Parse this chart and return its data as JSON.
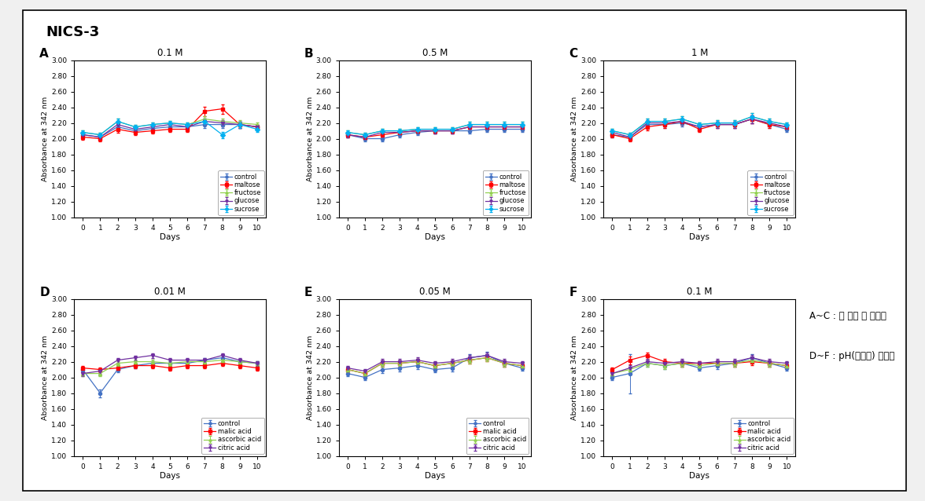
{
  "title": "NICS-3",
  "days": [
    0,
    1,
    2,
    3,
    4,
    5,
    6,
    7,
    8,
    9,
    10
  ],
  "ylim": [
    1.0,
    3.0
  ],
  "yticks": [
    1.0,
    1.2,
    1.4,
    1.6,
    1.8,
    2.0,
    2.2,
    2.4,
    2.6,
    2.8,
    3.0
  ],
  "ylabel": "Absorbance at 342 nm",
  "xlabel": "Days",
  "sugar_labels": [
    "control",
    "maltose",
    "fructose",
    "glucose",
    "sucrose"
  ],
  "sugar_colors": [
    "#4472C4",
    "#FF0000",
    "#92D050",
    "#7030A0",
    "#00B0F0"
  ],
  "sugar_markers": [
    "o",
    "s",
    "^",
    "v",
    "D"
  ],
  "acid_labels": [
    "control",
    "malic acid",
    "ascorbic acid",
    "citric acid"
  ],
  "acid_colors": [
    "#4472C4",
    "#FF0000",
    "#92D050",
    "#7030A0"
  ],
  "acid_markers": [
    "o",
    "s",
    "^",
    "v"
  ],
  "subplots": [
    {
      "label": "A",
      "title": "0.1 M",
      "type": "sugar",
      "data": {
        "control": [
          2.05,
          2.02,
          2.15,
          2.1,
          2.13,
          2.15,
          2.15,
          2.18,
          2.18,
          2.18,
          2.15
        ],
        "maltose": [
          2.02,
          2.0,
          2.12,
          2.08,
          2.1,
          2.12,
          2.12,
          2.35,
          2.38,
          2.18,
          2.15
        ],
        "fructose": [
          2.08,
          2.05,
          2.22,
          2.15,
          2.18,
          2.2,
          2.18,
          2.25,
          2.22,
          2.2,
          2.18
        ],
        "glucose": [
          2.05,
          2.02,
          2.18,
          2.12,
          2.15,
          2.18,
          2.15,
          2.22,
          2.2,
          2.18,
          2.15
        ],
        "sucrose": [
          2.08,
          2.05,
          2.22,
          2.15,
          2.18,
          2.2,
          2.18,
          2.22,
          2.05,
          2.18,
          2.12
        ]
      },
      "errors": {
        "control": [
          0.03,
          0.03,
          0.04,
          0.03,
          0.03,
          0.03,
          0.03,
          0.04,
          0.04,
          0.04,
          0.03
        ],
        "maltose": [
          0.03,
          0.03,
          0.04,
          0.03,
          0.03,
          0.03,
          0.03,
          0.06,
          0.06,
          0.04,
          0.03
        ],
        "fructose": [
          0.03,
          0.03,
          0.04,
          0.03,
          0.03,
          0.03,
          0.03,
          0.04,
          0.04,
          0.04,
          0.03
        ],
        "glucose": [
          0.03,
          0.03,
          0.04,
          0.03,
          0.03,
          0.03,
          0.03,
          0.04,
          0.04,
          0.04,
          0.03
        ],
        "sucrose": [
          0.03,
          0.03,
          0.04,
          0.03,
          0.03,
          0.03,
          0.03,
          0.04,
          0.04,
          0.04,
          0.03
        ]
      }
    },
    {
      "label": "B",
      "title": "0.5 M",
      "type": "sugar",
      "data": {
        "control": [
          2.05,
          2.0,
          2.0,
          2.05,
          2.08,
          2.1,
          2.1,
          2.1,
          2.12,
          2.12,
          2.12
        ],
        "maltose": [
          2.05,
          2.02,
          2.05,
          2.08,
          2.1,
          2.1,
          2.1,
          2.15,
          2.15,
          2.15,
          2.15
        ],
        "fructose": [
          2.08,
          2.05,
          2.1,
          2.1,
          2.12,
          2.12,
          2.12,
          2.18,
          2.18,
          2.18,
          2.18
        ],
        "glucose": [
          2.05,
          2.02,
          2.08,
          2.08,
          2.1,
          2.1,
          2.1,
          2.15,
          2.15,
          2.15,
          2.15
        ],
        "sucrose": [
          2.08,
          2.05,
          2.1,
          2.1,
          2.12,
          2.12,
          2.12,
          2.18,
          2.18,
          2.18,
          2.18
        ]
      },
      "errors": {
        "control": [
          0.03,
          0.03,
          0.03,
          0.03,
          0.03,
          0.03,
          0.03,
          0.03,
          0.03,
          0.03,
          0.03
        ],
        "maltose": [
          0.03,
          0.03,
          0.03,
          0.03,
          0.03,
          0.03,
          0.03,
          0.04,
          0.04,
          0.04,
          0.04
        ],
        "fructose": [
          0.03,
          0.03,
          0.03,
          0.03,
          0.03,
          0.03,
          0.03,
          0.04,
          0.04,
          0.04,
          0.04
        ],
        "glucose": [
          0.03,
          0.03,
          0.03,
          0.03,
          0.03,
          0.03,
          0.03,
          0.04,
          0.04,
          0.04,
          0.04
        ],
        "sucrose": [
          0.03,
          0.03,
          0.03,
          0.03,
          0.03,
          0.03,
          0.03,
          0.04,
          0.04,
          0.04,
          0.04
        ]
      }
    },
    {
      "label": "C",
      "title": "1 M",
      "type": "sugar",
      "data": {
        "control": [
          2.05,
          2.02,
          2.18,
          2.18,
          2.2,
          2.15,
          2.18,
          2.18,
          2.25,
          2.18,
          2.12
        ],
        "maltose": [
          2.05,
          2.0,
          2.15,
          2.18,
          2.22,
          2.12,
          2.18,
          2.18,
          2.25,
          2.18,
          2.15
        ],
        "fructose": [
          2.1,
          2.05,
          2.22,
          2.22,
          2.25,
          2.18,
          2.2,
          2.2,
          2.28,
          2.22,
          2.18
        ],
        "glucose": [
          2.08,
          2.02,
          2.2,
          2.2,
          2.22,
          2.15,
          2.18,
          2.18,
          2.25,
          2.2,
          2.15
        ],
        "sucrose": [
          2.1,
          2.05,
          2.22,
          2.22,
          2.25,
          2.18,
          2.2,
          2.2,
          2.28,
          2.22,
          2.18
        ]
      },
      "errors": {
        "control": [
          0.03,
          0.03,
          0.04,
          0.04,
          0.04,
          0.03,
          0.04,
          0.04,
          0.05,
          0.04,
          0.03
        ],
        "maltose": [
          0.03,
          0.03,
          0.04,
          0.04,
          0.04,
          0.03,
          0.04,
          0.04,
          0.05,
          0.04,
          0.03
        ],
        "fructose": [
          0.03,
          0.03,
          0.04,
          0.04,
          0.04,
          0.03,
          0.04,
          0.04,
          0.05,
          0.04,
          0.03
        ],
        "glucose": [
          0.03,
          0.03,
          0.04,
          0.04,
          0.04,
          0.03,
          0.04,
          0.04,
          0.05,
          0.04,
          0.03
        ],
        "sucrose": [
          0.03,
          0.03,
          0.04,
          0.04,
          0.04,
          0.03,
          0.04,
          0.04,
          0.05,
          0.04,
          0.03
        ]
      }
    },
    {
      "label": "D",
      "title": "0.01 M",
      "type": "acid",
      "data": {
        "control": [
          2.1,
          1.8,
          2.1,
          2.15,
          2.18,
          2.18,
          2.18,
          2.22,
          2.25,
          2.2,
          2.18
        ],
        "malic acid": [
          2.12,
          2.1,
          2.12,
          2.15,
          2.15,
          2.12,
          2.15,
          2.15,
          2.18,
          2.15,
          2.12
        ],
        "ascorbic acid": [
          2.05,
          2.05,
          2.18,
          2.2,
          2.2,
          2.18,
          2.2,
          2.2,
          2.22,
          2.2,
          2.18
        ],
        "citric acid": [
          2.05,
          2.08,
          2.22,
          2.25,
          2.28,
          2.22,
          2.22,
          2.22,
          2.28,
          2.22,
          2.18
        ]
      },
      "errors": {
        "control": [
          0.03,
          0.05,
          0.03,
          0.03,
          0.03,
          0.03,
          0.03,
          0.03,
          0.04,
          0.03,
          0.03
        ],
        "malic acid": [
          0.03,
          0.03,
          0.03,
          0.03,
          0.03,
          0.03,
          0.03,
          0.03,
          0.03,
          0.03,
          0.03
        ],
        "ascorbic acid": [
          0.03,
          0.03,
          0.03,
          0.03,
          0.03,
          0.03,
          0.03,
          0.03,
          0.03,
          0.03,
          0.03
        ],
        "citric acid": [
          0.03,
          0.03,
          0.03,
          0.03,
          0.03,
          0.03,
          0.03,
          0.03,
          0.03,
          0.03,
          0.03
        ]
      }
    },
    {
      "label": "E",
      "title": "0.05 M",
      "type": "acid",
      "data": {
        "control": [
          2.05,
          2.0,
          2.1,
          2.12,
          2.15,
          2.1,
          2.12,
          2.25,
          2.28,
          2.18,
          2.12
        ],
        "malic acid": [
          2.1,
          2.05,
          2.18,
          2.18,
          2.2,
          2.15,
          2.18,
          2.22,
          2.25,
          2.18,
          2.15
        ],
        "ascorbic acid": [
          2.1,
          2.05,
          2.18,
          2.18,
          2.2,
          2.15,
          2.18,
          2.22,
          2.25,
          2.18,
          2.15
        ],
        "citric acid": [
          2.12,
          2.08,
          2.2,
          2.2,
          2.22,
          2.18,
          2.2,
          2.25,
          2.28,
          2.2,
          2.18
        ]
      },
      "errors": {
        "control": [
          0.03,
          0.03,
          0.04,
          0.04,
          0.04,
          0.03,
          0.04,
          0.05,
          0.05,
          0.04,
          0.03
        ],
        "malic acid": [
          0.03,
          0.03,
          0.04,
          0.04,
          0.04,
          0.03,
          0.04,
          0.04,
          0.04,
          0.04,
          0.03
        ],
        "ascorbic acid": [
          0.03,
          0.03,
          0.04,
          0.04,
          0.04,
          0.03,
          0.04,
          0.04,
          0.04,
          0.04,
          0.03
        ],
        "citric acid": [
          0.03,
          0.03,
          0.04,
          0.04,
          0.04,
          0.03,
          0.04,
          0.04,
          0.04,
          0.04,
          0.03
        ]
      }
    },
    {
      "label": "F",
      "title": "0.1 M",
      "type": "acid",
      "data": {
        "control": [
          2.0,
          2.05,
          2.18,
          2.15,
          2.18,
          2.12,
          2.15,
          2.18,
          2.25,
          2.18,
          2.12
        ],
        "malic acid": [
          2.1,
          2.22,
          2.28,
          2.2,
          2.18,
          2.18,
          2.18,
          2.18,
          2.2,
          2.18,
          2.15
        ],
        "ascorbic acid": [
          2.05,
          2.1,
          2.18,
          2.15,
          2.18,
          2.15,
          2.18,
          2.18,
          2.22,
          2.18,
          2.15
        ],
        "citric acid": [
          2.05,
          2.12,
          2.2,
          2.18,
          2.2,
          2.18,
          2.2,
          2.2,
          2.25,
          2.2,
          2.18
        ]
      },
      "errors": {
        "control": [
          0.03,
          0.25,
          0.04,
          0.04,
          0.04,
          0.03,
          0.04,
          0.04,
          0.05,
          0.04,
          0.03
        ],
        "malic acid": [
          0.03,
          0.05,
          0.04,
          0.04,
          0.04,
          0.03,
          0.04,
          0.04,
          0.04,
          0.04,
          0.03
        ],
        "ascorbic acid": [
          0.03,
          0.04,
          0.04,
          0.04,
          0.04,
          0.03,
          0.04,
          0.04,
          0.04,
          0.04,
          0.03
        ],
        "citric acid": [
          0.03,
          0.04,
          0.04,
          0.04,
          0.04,
          0.03,
          0.04,
          0.04,
          0.04,
          0.04,
          0.03
        ]
      }
    }
  ],
  "annotation_line1": "A~C : 당 농도 별 안정성",
  "annotation_line2": "D~F : pH(유기산) 안정성",
  "background_color": "#F0F0F0",
  "panel_bg": "#FFFFFF"
}
